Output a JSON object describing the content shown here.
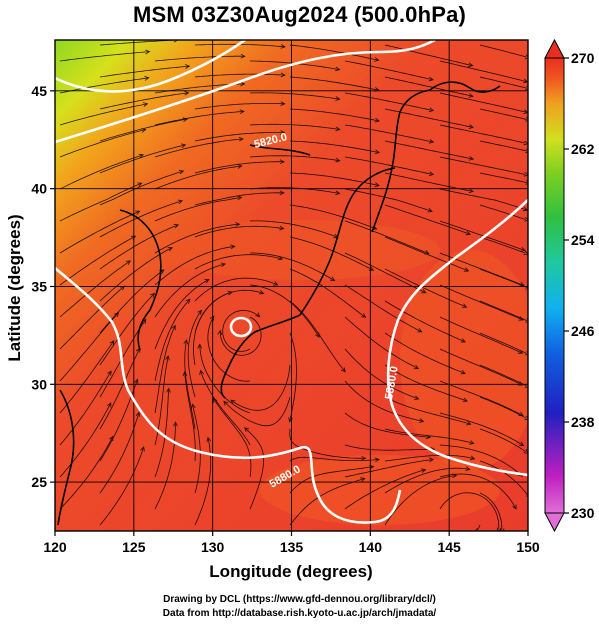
{
  "title": "MSM 03Z30Aug2024 (500.0hPa)",
  "axes": {
    "xlabel": "Longitude (degrees)",
    "ylabel": "Latitude  (degrees)",
    "xlim": [
      120,
      150
    ],
    "ylim": [
      22.5,
      47.6
    ],
    "xticks": [
      "120",
      "125",
      "130",
      "135",
      "140",
      "145",
      "150"
    ],
    "yticks": [
      "25",
      "30",
      "35",
      "40",
      "45"
    ],
    "grid": true
  },
  "colorbar": {
    "min": 230,
    "max": 270,
    "ticks": [
      "230",
      "238",
      "246",
      "254",
      "262",
      "270"
    ],
    "colors": [
      "#e070d8",
      "#c020c0",
      "#2020c0",
      "#1060e0",
      "#10b0f0",
      "#20c8a0",
      "#30c040",
      "#80d020",
      "#d0e020",
      "#f0a020",
      "#f05020",
      "#e83020"
    ]
  },
  "contour_labels": [
    "5880.0",
    "5820.0",
    "5880.0"
  ],
  "credits": {
    "line1": "Drawing by DCL (https://www.gfd-dennou.org/library/dcl/)",
    "line2": "Data from http://database.rish.kyoto-u.ac.jp/arch/jmadata/"
  }
}
